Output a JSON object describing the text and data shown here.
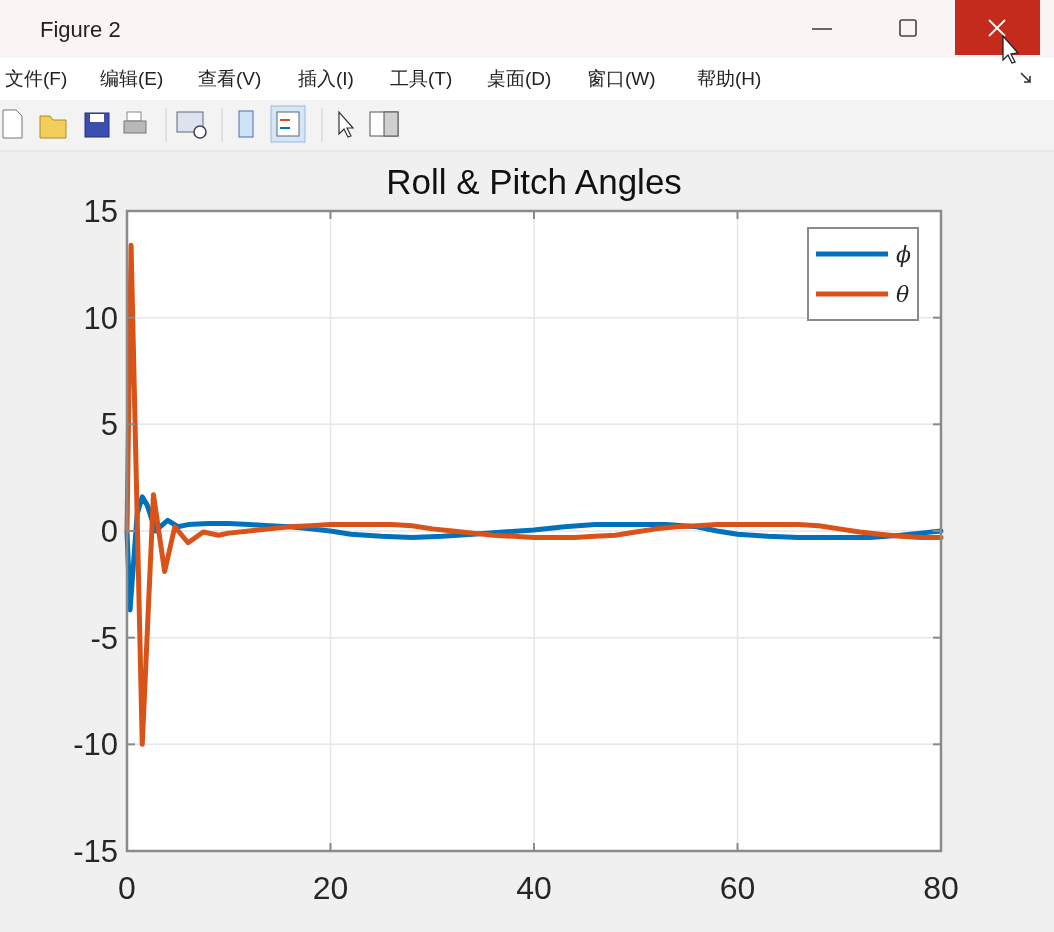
{
  "chart_data": {
    "type": "line",
    "title": "Roll & Pitch Angles",
    "annotations": [
      "Figure 2",
      "文件(F)",
      "编辑(E)",
      "查看(V)",
      "插入(I)",
      "工具(T)",
      "桌面(D)",
      "窗口(W)",
      "帮助(H)"
    ],
    "xlim": [
      0,
      80
    ],
    "ylim": [
      -15,
      15
    ],
    "xticks": [
      0,
      20,
      40,
      60,
      80
    ],
    "yticks": [
      -15,
      -10,
      -5,
      0,
      5,
      10,
      15
    ],
    "grid": true,
    "legend": "top right",
    "series": [
      {
        "name": "ϕ",
        "color": "#0072bd",
        "x": [
          0,
          0.3,
          1.0,
          1.5,
          2.0,
          2.8,
          3.5,
          4.0,
          5.0,
          6,
          8,
          10,
          12,
          14,
          16,
          18,
          20,
          22,
          25,
          28,
          31,
          34,
          37,
          40,
          43,
          46,
          50,
          53,
          56,
          58,
          60,
          63,
          66,
          70,
          73,
          76,
          78,
          80
        ],
        "values": [
          0,
          -3.7,
          0.8,
          1.6,
          1.2,
          0.0,
          0.3,
          0.5,
          0.2,
          0.3,
          0.35,
          0.35,
          0.3,
          0.25,
          0.2,
          0.1,
          0.0,
          -0.15,
          -0.25,
          -0.3,
          -0.25,
          -0.15,
          -0.05,
          0.05,
          0.2,
          0.3,
          0.3,
          0.3,
          0.2,
          0.0,
          -0.15,
          -0.25,
          -0.3,
          -0.3,
          -0.3,
          -0.2,
          -0.1,
          0.0
        ]
      },
      {
        "name": "θ",
        "color": "#d95319",
        "x": [
          0,
          0.4,
          1.5,
          2.6,
          3.7,
          4.7,
          6.0,
          7.5,
          9,
          10,
          12,
          14,
          16,
          18,
          20,
          22,
          24,
          26,
          28,
          30,
          32,
          34,
          36,
          38,
          40,
          42,
          44,
          46,
          48,
          50,
          52,
          54,
          56,
          58,
          60,
          62,
          64,
          66,
          68,
          70,
          72,
          74,
          76,
          78,
          80
        ],
        "values": [
          0,
          13.4,
          -10.0,
          1.7,
          -1.9,
          0.2,
          -0.55,
          -0.05,
          -0.2,
          -0.1,
          0.0,
          0.1,
          0.2,
          0.25,
          0.3,
          0.3,
          0.3,
          0.3,
          0.25,
          0.1,
          0.0,
          -0.1,
          -0.2,
          -0.25,
          -0.3,
          -0.3,
          -0.3,
          -0.25,
          -0.2,
          -0.05,
          0.1,
          0.2,
          0.25,
          0.3,
          0.3,
          0.3,
          0.3,
          0.3,
          0.25,
          0.1,
          -0.05,
          -0.15,
          -0.25,
          -0.3,
          -0.3
        ]
      }
    ]
  }
}
